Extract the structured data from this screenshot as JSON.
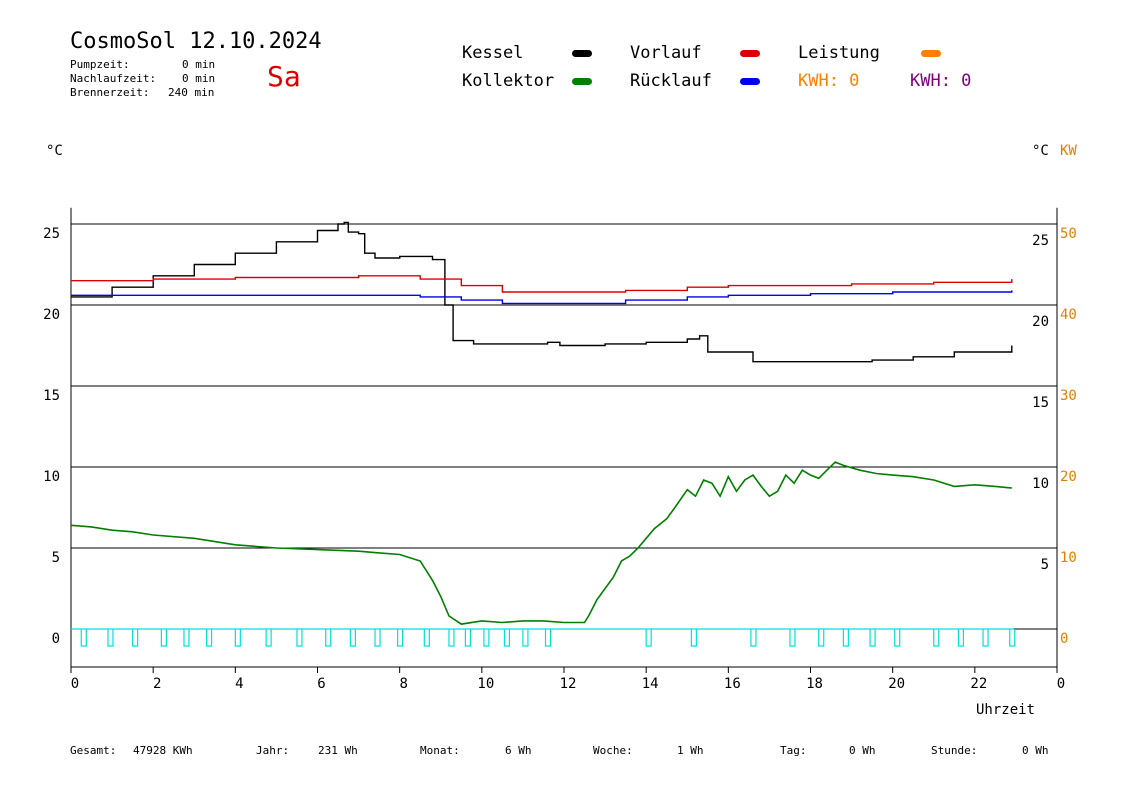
{
  "header": {
    "title": "CosmoSol 12.10.2024",
    "pump_label": "Pumpzeit:",
    "pump_value": "0 min",
    "nach_label": "Nachlaufzeit:",
    "nach_value": "0 min",
    "brenner_label": "Brennerzeit:",
    "brenner_value": "240 min",
    "weekday": "Sa"
  },
  "legend": {
    "kessel": "Kessel",
    "kollektor": "Kollektor",
    "vorlauf": "Vorlauf",
    "ruecklauf": "Rücklauf",
    "leistung": "Leistung",
    "kwh1": "KWH: 0",
    "kwh2": "KWH: 0"
  },
  "colors": {
    "kessel": "#000000",
    "kollektor": "#008000",
    "vorlauf": "#dd0000",
    "ruecklauf": "#0000ee",
    "leistung": "#ff8000",
    "kwh2": "#800080",
    "pump": "#00e0e0",
    "axis_right2": "#e08000"
  },
  "units": {
    "left": "°C",
    "right1": "°C",
    "right2": "KW"
  },
  "footer": {
    "gesamt_label": "Gesamt:",
    "gesamt_value": "47928 KWh",
    "jahr_label": "Jahr:",
    "jahr_value": "231 Wh",
    "monat_label": "Monat:",
    "monat_value": "6 Wh",
    "woche_label": "Woche:",
    "woche_value": "1 Wh",
    "tag_label": "Tag:",
    "tag_value": "0 Wh",
    "stunde_label": "Stunde:",
    "stunde_value": "0 Wh"
  },
  "chart_data": {
    "type": "line",
    "xlabel": "Uhrzeit",
    "x_ticks": [
      "0",
      "2",
      "4",
      "6",
      "8",
      "10",
      "12",
      "14",
      "16",
      "18",
      "20",
      "22",
      "0"
    ],
    "xlim": [
      0,
      24
    ],
    "ylim": [
      -2.5,
      26
    ],
    "y_ticks_left": [
      "0",
      "5",
      "10",
      "15",
      "20",
      "25"
    ],
    "y_ticks_right1": [
      "5",
      "10",
      "15",
      "20",
      "25"
    ],
    "y_ticks_right2": [
      "0",
      "10",
      "20",
      "30",
      "40",
      "50"
    ],
    "grid": true,
    "series": [
      {
        "name": "Kessel",
        "color": "#000000",
        "points": [
          [
            0,
            20.5
          ],
          [
            1,
            21.1
          ],
          [
            2,
            21.8
          ],
          [
            3,
            22.5
          ],
          [
            4,
            23.2
          ],
          [
            5,
            23.9
          ],
          [
            6,
            24.6
          ],
          [
            6.5,
            25
          ],
          [
            6.65,
            25.1
          ],
          [
            6.75,
            24.5
          ],
          [
            7,
            24.4
          ],
          [
            7.15,
            23.2
          ],
          [
            7.4,
            22.9
          ],
          [
            8,
            23
          ],
          [
            8.8,
            22.8
          ],
          [
            9.1,
            20
          ],
          [
            9.3,
            17.8
          ],
          [
            9.8,
            17.6
          ],
          [
            11,
            17.6
          ],
          [
            11.6,
            17.7
          ],
          [
            11.9,
            17.5
          ],
          [
            13,
            17.6
          ],
          [
            14,
            17.7
          ],
          [
            15,
            17.9
          ],
          [
            15.3,
            18.1
          ],
          [
            15.5,
            17.1
          ],
          [
            16.2,
            17.1
          ],
          [
            16.6,
            16.5
          ],
          [
            17.5,
            16.5
          ],
          [
            18.5,
            16.5
          ],
          [
            19.5,
            16.6
          ],
          [
            20.5,
            16.8
          ],
          [
            21.5,
            17.1
          ],
          [
            22.9,
            17.5
          ]
        ]
      },
      {
        "name": "Vorlauf",
        "color": "#dd0000",
        "points": [
          [
            0,
            21.5
          ],
          [
            2,
            21.6
          ],
          [
            4,
            21.7
          ],
          [
            7,
            21.8
          ],
          [
            8.5,
            21.6
          ],
          [
            9.5,
            21.2
          ],
          [
            10.5,
            20.8
          ],
          [
            12,
            20.8
          ],
          [
            13.5,
            20.9
          ],
          [
            15,
            21.1
          ],
          [
            16,
            21.2
          ],
          [
            17.5,
            21.2
          ],
          [
            19,
            21.3
          ],
          [
            21,
            21.4
          ],
          [
            22.9,
            21.6
          ]
        ]
      },
      {
        "name": "Rücklauf",
        "color": "#0000ee",
        "points": [
          [
            0,
            20.6
          ],
          [
            3,
            20.6
          ],
          [
            6,
            20.6
          ],
          [
            8.5,
            20.5
          ],
          [
            9.5,
            20.3
          ],
          [
            10.5,
            20.1
          ],
          [
            12,
            20.1
          ],
          [
            13.5,
            20.3
          ],
          [
            15,
            20.5
          ],
          [
            16,
            20.6
          ],
          [
            18,
            20.7
          ],
          [
            20,
            20.8
          ],
          [
            22.9,
            20.9
          ]
        ]
      },
      {
        "name": "Kollektor",
        "color": "#008000",
        "points": [
          [
            0,
            6.4
          ],
          [
            0.5,
            6.3
          ],
          [
            1,
            6.1
          ],
          [
            1.5,
            6
          ],
          [
            2,
            5.8
          ],
          [
            3,
            5.6
          ],
          [
            4,
            5.2
          ],
          [
            5,
            5.0
          ],
          [
            6,
            4.9
          ],
          [
            7,
            4.8
          ],
          [
            7.5,
            4.7
          ],
          [
            8,
            4.6
          ],
          [
            8.5,
            4.2
          ],
          [
            8.8,
            3.0
          ],
          [
            9,
            2.0
          ],
          [
            9.2,
            0.8
          ],
          [
            9.5,
            0.3
          ],
          [
            10,
            0.5
          ],
          [
            10.5,
            0.4
          ],
          [
            11,
            0.5
          ],
          [
            11.5,
            0.5
          ],
          [
            12,
            0.4
          ],
          [
            12.5,
            0.4
          ],
          [
            12.6,
            0.8
          ],
          [
            12.8,
            1.8
          ],
          [
            13,
            2.5
          ],
          [
            13.2,
            3.2
          ],
          [
            13.4,
            4.2
          ],
          [
            13.6,
            4.5
          ],
          [
            13.8,
            5.0
          ],
          [
            14,
            5.6
          ],
          [
            14.2,
            6.2
          ],
          [
            14.5,
            6.8
          ],
          [
            14.7,
            7.5
          ],
          [
            15,
            8.6
          ],
          [
            15.2,
            8.2
          ],
          [
            15.4,
            9.2
          ],
          [
            15.6,
            9.0
          ],
          [
            15.8,
            8.2
          ],
          [
            16,
            9.4
          ],
          [
            16.2,
            8.5
          ],
          [
            16.4,
            9.2
          ],
          [
            16.6,
            9.5
          ],
          [
            16.8,
            8.8
          ],
          [
            17,
            8.2
          ],
          [
            17.2,
            8.5
          ],
          [
            17.4,
            9.5
          ],
          [
            17.6,
            9.0
          ],
          [
            17.8,
            9.8
          ],
          [
            18,
            9.5
          ],
          [
            18.2,
            9.3
          ],
          [
            18.4,
            9.8
          ],
          [
            18.6,
            10.3
          ],
          [
            18.8,
            10.1
          ],
          [
            19.2,
            9.8
          ],
          [
            19.6,
            9.6
          ],
          [
            20,
            9.5
          ],
          [
            20.5,
            9.4
          ],
          [
            21,
            9.2
          ],
          [
            21.5,
            8.8
          ],
          [
            22,
            8.9
          ],
          [
            22.5,
            8.8
          ],
          [
            22.9,
            8.7
          ]
        ]
      }
    ],
    "pump_pulses_x": [
      0.25,
      0.9,
      1.5,
      2.2,
      2.75,
      3.3,
      4.0,
      4.75,
      5.5,
      6.2,
      6.8,
      7.4,
      7.95,
      8.6,
      9.2,
      9.6,
      10.05,
      10.55,
      11.0,
      11.55,
      14.0,
      15.1,
      16.55,
      17.5,
      18.2,
      18.8,
      19.45,
      20.05,
      21.0,
      21.6,
      22.2,
      22.85
    ]
  }
}
